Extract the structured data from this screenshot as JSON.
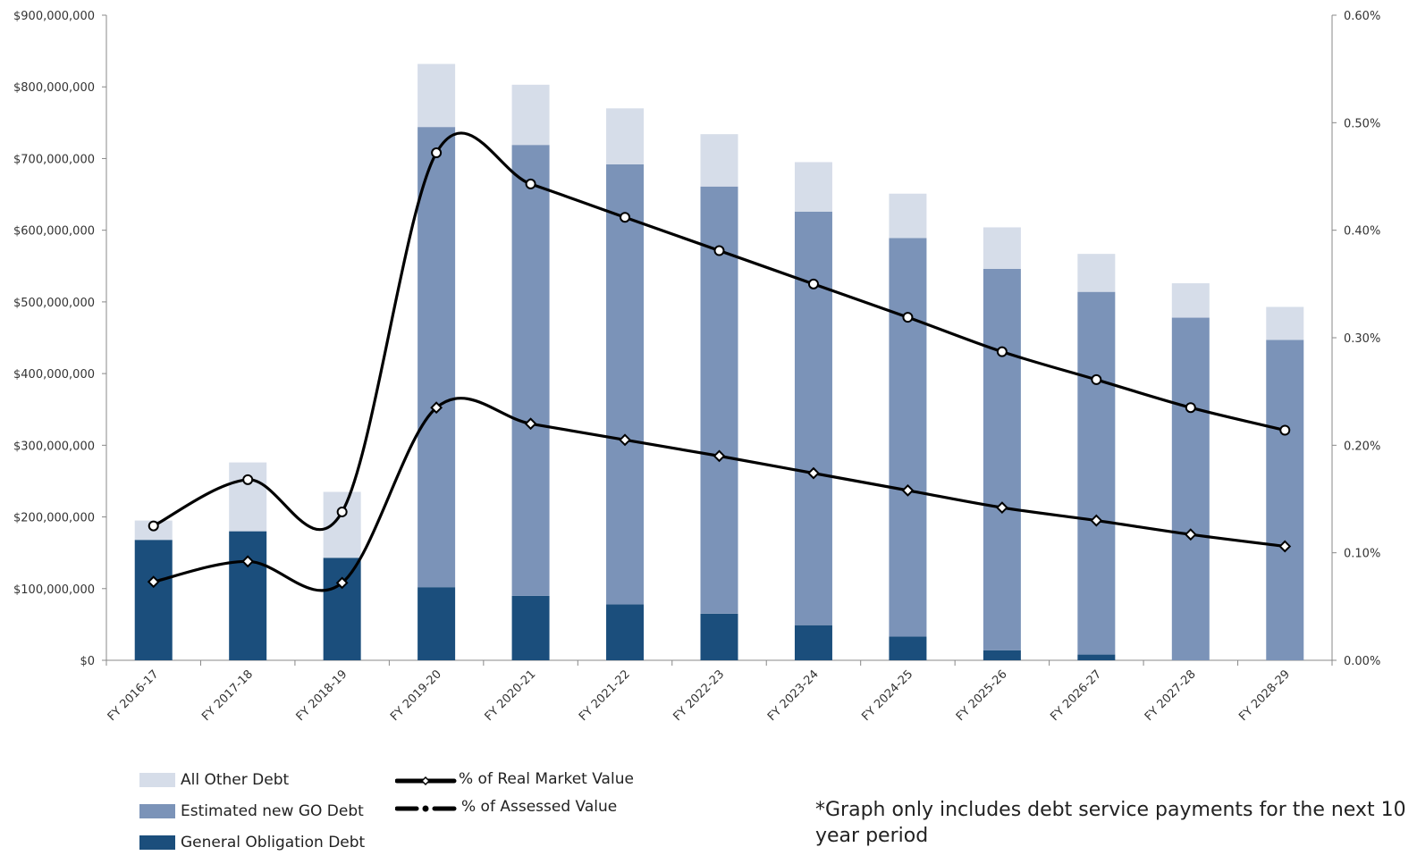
{
  "chart_data": {
    "type": "bar",
    "stacked": true,
    "categories": [
      "FY 2016-17",
      "FY 2017-18",
      "FY 2018-19",
      "FY 2019-20",
      "FY 2020-21",
      "FY 2021-22",
      "FY 2022-23",
      "FY 2023-24",
      "FY 2024-25",
      "FY 2025-26",
      "FY 2026-27",
      "FY 2027-28",
      "FY 2028-29"
    ],
    "series": [
      {
        "name": "General Obligation Debt",
        "color": "#1b4e7c",
        "values": [
          168000000,
          180000000,
          143000000,
          102000000,
          90000000,
          78000000,
          65000000,
          49000000,
          33000000,
          14000000,
          8000000,
          0,
          0
        ]
      },
      {
        "name": "Estimated new GO Debt",
        "color": "#7b93b8",
        "values": [
          0,
          0,
          0,
          642000000,
          629000000,
          614000000,
          596000000,
          577000000,
          556000000,
          532000000,
          506000000,
          478000000,
          447000000
        ]
      },
      {
        "name": "All Other Debt",
        "color": "#d6dde9",
        "values": [
          27000000,
          96000000,
          92000000,
          88000000,
          84000000,
          78000000,
          73000000,
          69000000,
          62000000,
          58000000,
          53000000,
          48000000,
          46000000
        ]
      }
    ],
    "lines": [
      {
        "name": "% of Real Market Value",
        "marker": "circle",
        "values": [
          0.125,
          0.168,
          0.138,
          0.472,
          0.443,
          0.412,
          0.381,
          0.35,
          0.319,
          0.287,
          0.261,
          0.235,
          0.214
        ]
      },
      {
        "name": "% of Assessed Value",
        "marker": "diamond",
        "values": [
          0.073,
          0.092,
          0.072,
          0.235,
          0.22,
          0.205,
          0.19,
          0.174,
          0.158,
          0.142,
          0.13,
          0.117,
          0.106
        ]
      }
    ],
    "ylim": [
      0,
      900000000
    ],
    "y2lim": [
      0,
      0.6
    ],
    "y_ticks": [
      "$0",
      "$100,000,000",
      "$200,000,000",
      "$300,000,000",
      "$400,000,000",
      "$500,000,000",
      "$600,000,000",
      "$700,000,000",
      "$800,000,000",
      "$900,000,000"
    ],
    "y2_ticks": [
      "0.00%",
      "0.10%",
      "0.20%",
      "0.30%",
      "0.40%",
      "0.50%",
      "0.60%"
    ],
    "grid": false,
    "legend_position": "bottom-left"
  },
  "legend": {
    "all_other": "All Other Debt",
    "est_new_go": "Estimated new GO Debt",
    "go_debt": "General Obligation Debt",
    "rmv": "% of  Real Market Value",
    "av": "% of  Assessed Value"
  },
  "footnote": "*Graph only includes debt service payments for the next 10 year period"
}
